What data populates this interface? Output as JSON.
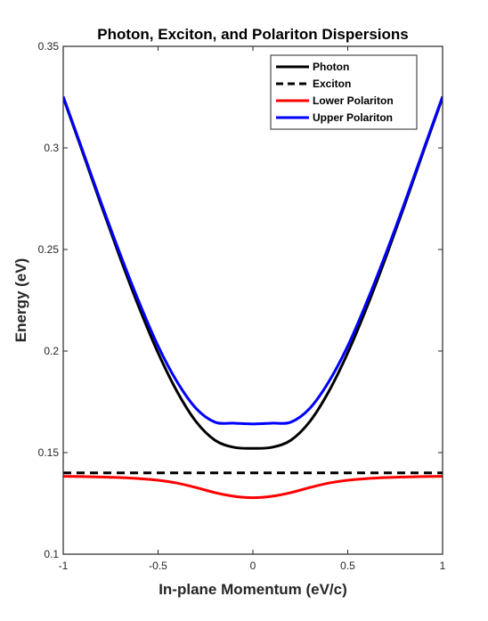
{
  "chart_data": {
    "type": "line",
    "title": "Photon, Exciton, and Polariton Dispersions",
    "xlabel": "In-plane Momentum (eV/c)",
    "ylabel": "Energy (eV)",
    "xlim": [
      -1,
      1
    ],
    "ylim": [
      0.1,
      0.35
    ],
    "xticks": [
      -1,
      -0.5,
      0,
      0.5,
      1
    ],
    "xtick_labels": [
      "-1",
      "-0.5",
      "0",
      "0.5",
      "1"
    ],
    "yticks": [
      0.1,
      0.15,
      0.2,
      0.25,
      0.3,
      0.35
    ],
    "ytick_labels": [
      "0.1",
      "0.15",
      "0.2",
      "0.25",
      "0.3",
      "0.35"
    ],
    "grid": false,
    "legend_position": "top-right",
    "x": [
      -1,
      -0.9,
      -0.8,
      -0.7,
      -0.6,
      -0.5,
      -0.4,
      -0.3,
      -0.2,
      -0.1,
      0,
      0.1,
      0.2,
      0.3,
      0.4,
      0.5,
      0.6,
      0.7,
      0.8,
      0.9,
      1
    ],
    "series": [
      {
        "name": "Photon",
        "color": "#000000",
        "style": "solid",
        "values": [
          0.3248,
          0.2985,
          0.2718,
          0.2459,
          0.2214,
          0.1991,
          0.1801,
          0.1653,
          0.1561,
          0.1526,
          0.1521,
          0.1526,
          0.1561,
          0.1653,
          0.1801,
          0.1991,
          0.2214,
          0.2459,
          0.2718,
          0.2985,
          0.3248
        ]
      },
      {
        "name": "Exciton",
        "color": "#000000",
        "style": "dashed",
        "values": [
          0.14,
          0.14,
          0.14,
          0.14,
          0.14,
          0.14,
          0.14,
          0.14,
          0.14,
          0.14,
          0.14,
          0.14,
          0.14,
          0.14,
          0.14,
          0.14,
          0.14,
          0.14,
          0.14,
          0.14,
          0.14
        ]
      },
      {
        "name": "Lower Polariton",
        "color": "#ff0000",
        "style": "solid",
        "values": [
          0.1383,
          0.1382,
          0.138,
          0.1377,
          0.1372,
          0.1364,
          0.135,
          0.1328,
          0.1303,
          0.1285,
          0.1278,
          0.1285,
          0.1303,
          0.1328,
          0.135,
          0.1364,
          0.1372,
          0.1377,
          0.138,
          0.1382,
          0.1383
        ]
      },
      {
        "name": "Upper Polariton",
        "color": "#0000ff",
        "style": "solid",
        "values": [
          0.3253,
          0.2993,
          0.273,
          0.2478,
          0.2241,
          0.2025,
          0.1849,
          0.1718,
          0.165,
          0.1645,
          0.1641,
          0.1645,
          0.165,
          0.1718,
          0.1849,
          0.2025,
          0.2241,
          0.2478,
          0.273,
          0.2993,
          0.3253
        ]
      }
    ]
  }
}
